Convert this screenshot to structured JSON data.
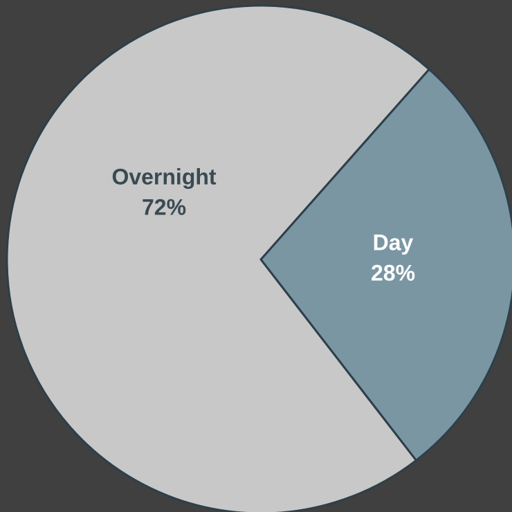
{
  "chart_data": {
    "type": "pie",
    "categories": [
      "Day",
      "Overnight"
    ],
    "values": [
      28,
      72
    ],
    "value_labels": [
      "28%",
      "72%"
    ],
    "colors": [
      "#7a96a3",
      "#c8c8c8"
    ]
  }
}
